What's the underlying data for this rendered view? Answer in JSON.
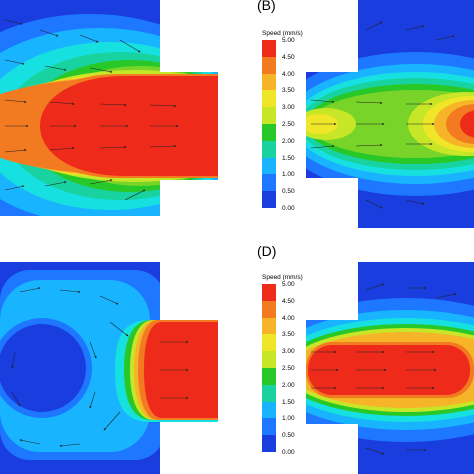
{
  "figure": {
    "panel_labels": [
      "(B)",
      "(D)"
    ],
    "colormap": [
      "#1a3de0",
      "#1e78ff",
      "#18b4ff",
      "#16e0e0",
      "#18d2a0",
      "#28c828",
      "#78d428",
      "#c8e628",
      "#f0e628",
      "#f6b428",
      "#f27a20",
      "#ee2a1a"
    ]
  },
  "legends": [
    {
      "title": "Speed (mm/s)",
      "ticks": [
        "5.00",
        "4.50",
        "4.00",
        "3.50",
        "3.00",
        "2.50",
        "2.00",
        "1.50",
        "1.00",
        "0.50",
        "0.00"
      ]
    },
    {
      "title": "Speed (mm/s)",
      "ticks": [
        "5.00",
        "4.50",
        "4.00",
        "3.50",
        "3.00",
        "2.50",
        "2.00",
        "1.50",
        "1.00",
        "0.50",
        "0.00"
      ]
    }
  ]
}
